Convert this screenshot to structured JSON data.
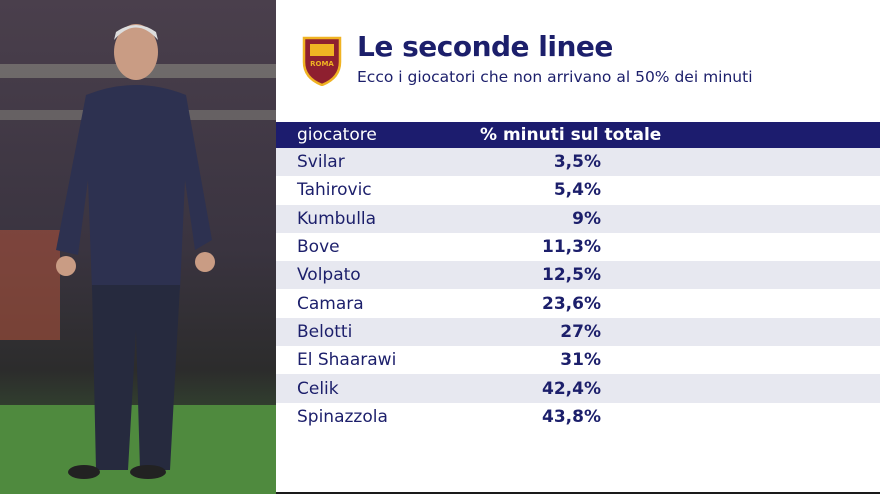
{
  "header": {
    "title": "Le seconde linee",
    "subtitle": "Ecco i giocatori che non arrivano al 50% dei minuti",
    "logo_text": "ROMA"
  },
  "table": {
    "columns": [
      "giocatore",
      "% minuti sul totale"
    ],
    "rows": [
      [
        "Svilar",
        "3,5%"
      ],
      [
        "Tahirovic",
        "5,4%"
      ],
      [
        "Kumbulla",
        "9%"
      ],
      [
        "Bove",
        "11,3%"
      ],
      [
        "Volpato",
        "12,5%"
      ],
      [
        "Camara",
        "23,6%"
      ],
      [
        "Belotti",
        "27%"
      ],
      [
        "El Shaarawi",
        "31%"
      ],
      [
        "Celik",
        "42,4%"
      ],
      [
        "Spinazzola",
        "43,8%"
      ]
    ]
  }
}
